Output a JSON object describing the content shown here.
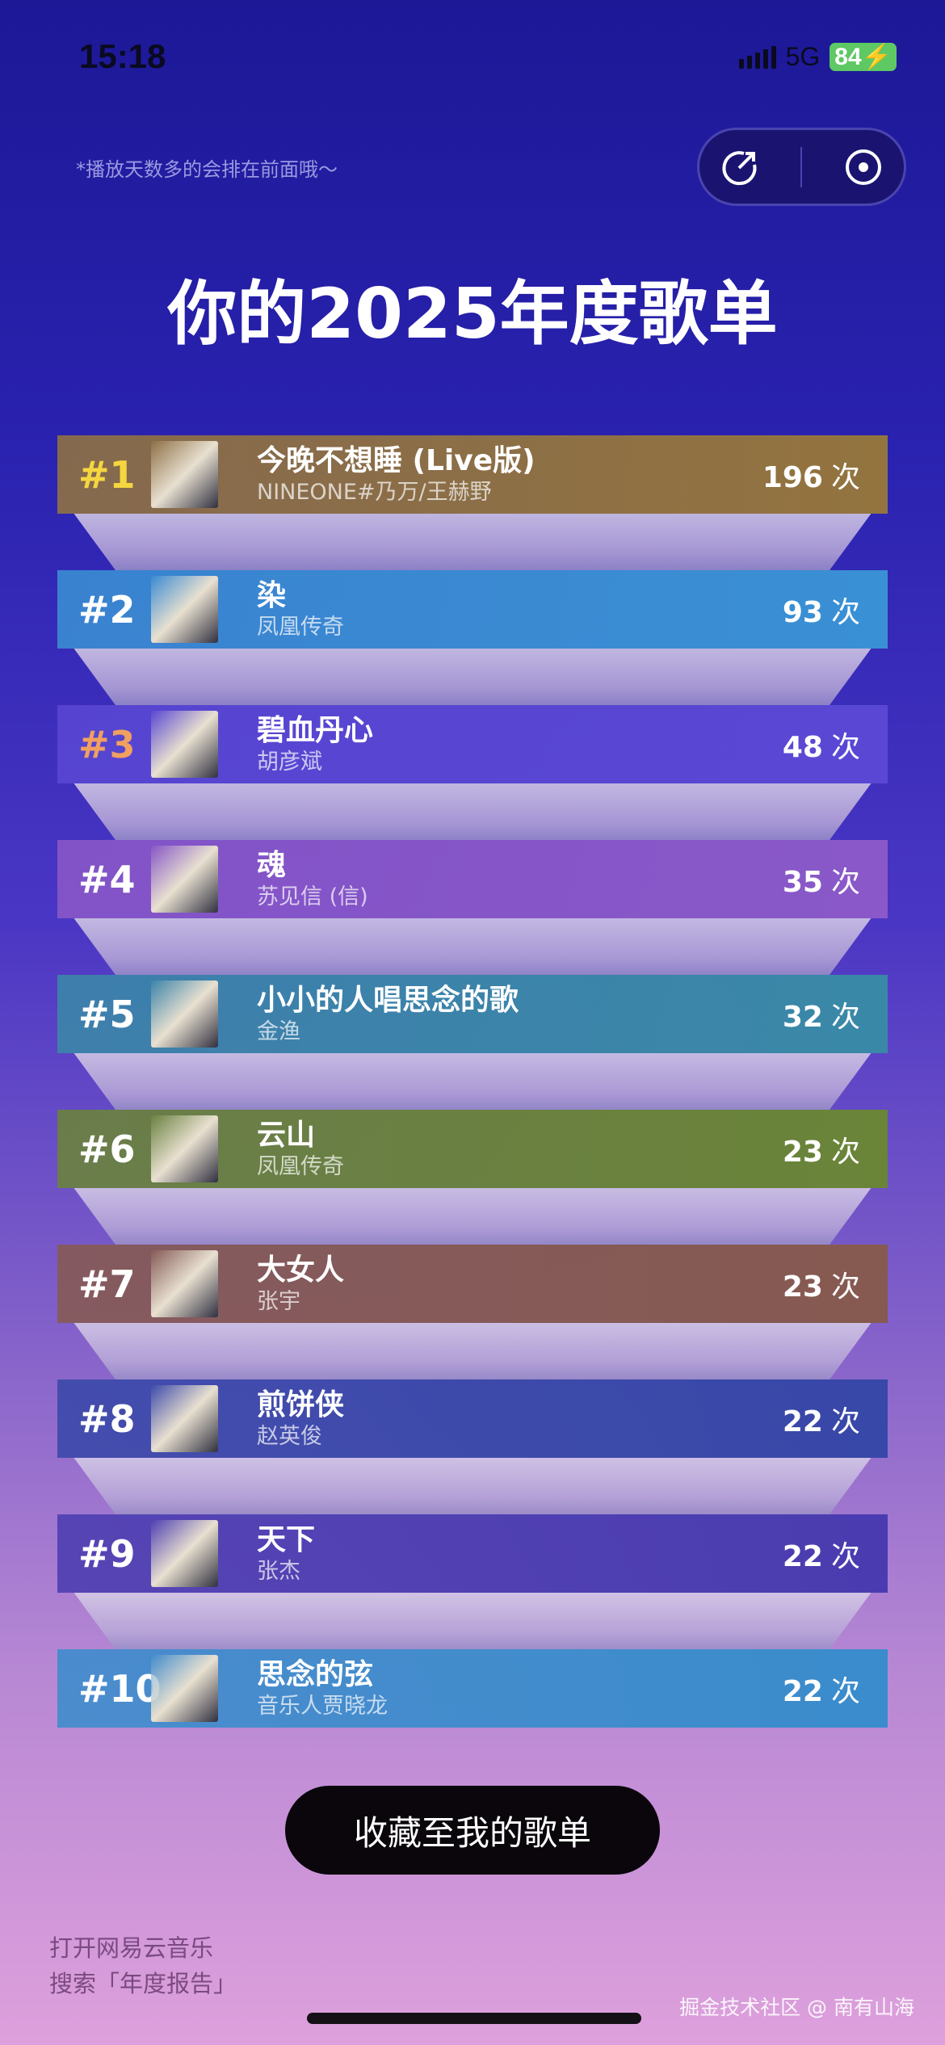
{
  "status": {
    "time": "15:18",
    "network": "5G",
    "battery": "84"
  },
  "hint": "*播放天数多的会排在前面哦～",
  "title": "你的2025年度歌单",
  "count_unit": "次",
  "songs": [
    {
      "rank": "#1",
      "title": "今晚不想睡 (Live版)",
      "artist": "NINEONE#乃万/王赫野",
      "count": "196",
      "color": "#93743f",
      "rank_color": "#f5d640"
    },
    {
      "rank": "#2",
      "title": "染",
      "artist": "凤凰传奇",
      "count": "93",
      "color": "#3a90d4",
      "rank_color": "#ffffff"
    },
    {
      "rank": "#3",
      "title": "碧血丹心",
      "artist": "胡彦斌",
      "count": "48",
      "color": "#5a48d4",
      "rank_color": "#f0a060"
    },
    {
      "rank": "#4",
      "title": "魂",
      "artist": "苏见信 (信)",
      "count": "35",
      "color": "#8a58c8",
      "rank_color": "#ffffff"
    },
    {
      "rank": "#5",
      "title": "小小的人唱思念的歌",
      "artist": "金渔",
      "count": "32",
      "color": "#3a88a8",
      "rank_color": "#ffffff"
    },
    {
      "rank": "#6",
      "title": "云山",
      "artist": "凤凰传奇",
      "count": "23",
      "color": "#6a8438",
      "rank_color": "#ffffff"
    },
    {
      "rank": "#7",
      "title": "大女人",
      "artist": "张宇",
      "count": "23",
      "color": "#865a50",
      "rank_color": "#ffffff"
    },
    {
      "rank": "#8",
      "title": "煎饼侠",
      "artist": "赵英俊",
      "count": "22",
      "color": "#3848a8",
      "rank_color": "#ffffff"
    },
    {
      "rank": "#9",
      "title": "天下",
      "artist": "张杰",
      "count": "22",
      "color": "#4a3cb0",
      "rank_color": "#ffffff"
    },
    {
      "rank": "#10",
      "title": "思念的弦",
      "artist": "音乐人贾晓龙",
      "count": "22",
      "color": "#3a8ccc",
      "rank_color": "#ffffff"
    }
  ],
  "save_button": "收藏至我的歌单",
  "footer": {
    "line1": "打开网易云音乐",
    "line2": "搜索「年度报告」"
  },
  "watermark": "掘金技术社区 @ 南有山海"
}
